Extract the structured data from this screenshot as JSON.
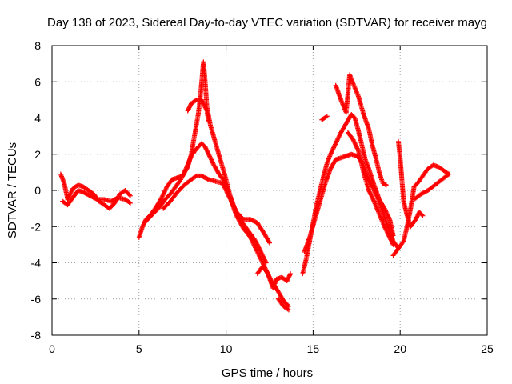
{
  "chart_data": {
    "type": "scatter",
    "title": "Day 138 of 2023, Sidereal Day-to-day VTEC variation (SDTVAR) for receiver mayg",
    "xlabel": "GPS time / hours",
    "ylabel": "SDTVAR / TECUs",
    "xlim": [
      0,
      25
    ],
    "ylim": [
      -8,
      8
    ],
    "xticks": [
      "0",
      "5",
      "10",
      "15",
      "20",
      "25"
    ],
    "yticks": [
      "-8",
      "-6",
      "-4",
      "-2",
      "0",
      "2",
      "4",
      "6",
      "8"
    ],
    "grid": true,
    "marker": "plus",
    "color": "#ff0000",
    "series": [
      {
        "points": [
          [
            0.5,
            0.9
          ],
          [
            0.7,
            0.4
          ],
          [
            0.9,
            -0.5
          ],
          [
            1.2,
            0.1
          ],
          [
            1.5,
            0.3
          ],
          [
            1.8,
            0.2
          ],
          [
            2.1,
            0.0
          ],
          [
            2.4,
            -0.2
          ],
          [
            2.7,
            -0.6
          ],
          [
            3.0,
            -0.8
          ],
          [
            3.3,
            -1.0
          ],
          [
            3.6,
            -0.7
          ],
          [
            3.9,
            -0.2
          ],
          [
            4.2,
            0.0
          ],
          [
            4.5,
            -0.3
          ]
        ]
      },
      {
        "points": [
          [
            0.6,
            -0.6
          ],
          [
            0.9,
            -0.8
          ],
          [
            1.2,
            -0.4
          ],
          [
            1.5,
            0.0
          ],
          [
            1.8,
            -0.1
          ],
          [
            2.2,
            -0.3
          ],
          [
            2.6,
            -0.5
          ],
          [
            3.0,
            -0.5
          ],
          [
            3.4,
            -0.6
          ],
          [
            3.8,
            -0.4
          ],
          [
            4.2,
            -0.5
          ],
          [
            4.5,
            -0.7
          ]
        ]
      },
      {
        "points": [
          [
            5.0,
            -2.6
          ],
          [
            5.2,
            -2.0
          ],
          [
            5.4,
            -1.6
          ],
          [
            5.7,
            -1.3
          ],
          [
            6.0,
            -0.9
          ],
          [
            6.3,
            -0.4
          ],
          [
            6.6,
            0.2
          ],
          [
            6.9,
            0.6
          ],
          [
            7.2,
            0.7
          ],
          [
            7.5,
            0.8
          ],
          [
            7.8,
            1.3
          ],
          [
            8.0,
            2.0
          ],
          [
            8.2,
            3.1
          ],
          [
            8.4,
            4.2
          ],
          [
            8.5,
            5.0
          ],
          [
            8.6,
            6.0
          ],
          [
            8.7,
            7.1
          ],
          [
            8.8,
            6.0
          ],
          [
            8.9,
            4.6
          ],
          [
            9.1,
            3.6
          ],
          [
            9.4,
            2.6
          ],
          [
            9.7,
            1.6
          ],
          [
            10.0,
            0.6
          ],
          [
            10.3,
            -0.6
          ],
          [
            10.6,
            -1.4
          ],
          [
            11.0,
            -2.1
          ],
          [
            11.4,
            -2.6
          ],
          [
            11.8,
            -3.4
          ],
          [
            12.2,
            -4.2
          ],
          [
            12.6,
            -5.0
          ],
          [
            13.0,
            -5.6
          ],
          [
            13.3,
            -6.1
          ],
          [
            13.6,
            -6.4
          ]
        ]
      },
      {
        "points": [
          [
            5.3,
            -1.8
          ],
          [
            5.6,
            -1.5
          ],
          [
            5.9,
            -1.2
          ],
          [
            6.2,
            -0.9
          ],
          [
            6.5,
            -0.5
          ],
          [
            6.8,
            -0.2
          ],
          [
            7.1,
            0.2
          ],
          [
            7.4,
            0.6
          ],
          [
            7.7,
            1.2
          ],
          [
            8.0,
            1.9
          ],
          [
            8.3,
            2.3
          ],
          [
            8.6,
            2.6
          ],
          [
            8.8,
            2.4
          ],
          [
            9.0,
            2.0
          ],
          [
            9.3,
            1.4
          ],
          [
            9.6,
            0.9
          ],
          [
            9.9,
            0.5
          ],
          [
            10.2,
            -0.2
          ],
          [
            10.5,
            -1.0
          ],
          [
            10.8,
            -1.6
          ],
          [
            11.1,
            -2.0
          ],
          [
            11.4,
            -2.4
          ],
          [
            11.7,
            -2.8
          ],
          [
            12.0,
            -3.4
          ],
          [
            12.3,
            -4.0
          ]
        ]
      },
      {
        "points": [
          [
            6.4,
            -1.0
          ],
          [
            6.8,
            -0.6
          ],
          [
            7.2,
            -0.1
          ],
          [
            7.6,
            0.3
          ],
          [
            8.0,
            0.6
          ],
          [
            8.3,
            0.8
          ],
          [
            8.6,
            0.8
          ],
          [
            9.0,
            0.6
          ],
          [
            9.4,
            0.5
          ],
          [
            9.8,
            0.4
          ],
          [
            10.2,
            -0.4
          ],
          [
            10.6,
            -1.2
          ],
          [
            11.0,
            -1.6
          ],
          [
            11.4,
            -1.6
          ],
          [
            11.8,
            -1.8
          ],
          [
            12.2,
            -2.4
          ],
          [
            12.5,
            -2.9
          ]
        ]
      },
      {
        "points": [
          [
            7.8,
            4.4
          ],
          [
            8.0,
            4.8
          ],
          [
            8.3,
            5.0
          ],
          [
            8.6,
            5.0
          ],
          [
            8.9,
            4.4
          ],
          [
            9.0,
            3.8
          ]
        ]
      },
      {
        "points": [
          [
            11.8,
            -4.6
          ],
          [
            12.1,
            -4.2
          ],
          [
            12.4,
            -4.6
          ],
          [
            12.7,
            -5.4
          ],
          [
            12.9,
            -4.9
          ],
          [
            13.2,
            -4.8
          ],
          [
            13.5,
            -5.0
          ],
          [
            13.7,
            -4.6
          ]
        ]
      },
      {
        "points": [
          [
            13.0,
            -6.0
          ],
          [
            13.3,
            -6.4
          ],
          [
            13.6,
            -6.6
          ]
        ]
      },
      {
        "points": [
          [
            14.4,
            -4.6
          ],
          [
            14.6,
            -3.8
          ],
          [
            14.8,
            -2.8
          ],
          [
            15.0,
            -1.8
          ],
          [
            15.2,
            -0.8
          ],
          [
            15.4,
            0.0
          ],
          [
            15.6,
            0.8
          ],
          [
            15.8,
            1.5
          ],
          [
            16.0,
            2.0
          ],
          [
            16.3,
            2.6
          ],
          [
            16.6,
            3.2
          ],
          [
            16.9,
            3.7
          ],
          [
            17.2,
            4.2
          ],
          [
            17.4,
            4.0
          ],
          [
            17.6,
            3.3
          ],
          [
            17.8,
            2.5
          ],
          [
            18.0,
            1.7
          ],
          [
            18.2,
            1.2
          ],
          [
            18.5,
            0.3
          ],
          [
            18.8,
            -0.5
          ],
          [
            19.1,
            -1.0
          ],
          [
            19.4,
            -1.6
          ],
          [
            19.6,
            -2.5
          ]
        ]
      },
      {
        "points": [
          [
            14.5,
            -3.4
          ],
          [
            14.8,
            -2.6
          ],
          [
            15.1,
            -1.6
          ],
          [
            15.4,
            -0.6
          ],
          [
            15.7,
            0.4
          ],
          [
            16.0,
            1.2
          ],
          [
            16.3,
            1.7
          ],
          [
            16.6,
            1.8
          ],
          [
            16.9,
            1.9
          ],
          [
            17.2,
            2.0
          ],
          [
            17.5,
            1.9
          ],
          [
            17.8,
            1.6
          ],
          [
            18.1,
            0.8
          ],
          [
            18.4,
            0.2
          ],
          [
            18.7,
            -0.4
          ],
          [
            19.0,
            -1.2
          ],
          [
            19.3,
            -2.0
          ],
          [
            19.6,
            -2.8
          ],
          [
            19.9,
            -3.2
          ]
        ]
      },
      {
        "points": [
          [
            15.5,
            3.9
          ],
          [
            15.8,
            4.1
          ]
        ]
      },
      {
        "points": [
          [
            16.3,
            5.8
          ],
          [
            16.6,
            5.0
          ],
          [
            16.9,
            4.3
          ],
          [
            17.1,
            6.4
          ],
          [
            17.3,
            5.9
          ],
          [
            17.6,
            5.2
          ],
          [
            17.9,
            4.2
          ],
          [
            18.2,
            3.4
          ],
          [
            18.4,
            2.5
          ],
          [
            18.6,
            1.8
          ],
          [
            18.8,
            1.0
          ],
          [
            19.0,
            0.4
          ],
          [
            19.2,
            0.3
          ]
        ]
      },
      {
        "points": [
          [
            17.0,
            3.2
          ],
          [
            17.3,
            2.8
          ],
          [
            17.6,
            2.2
          ],
          [
            17.9,
            1.0
          ],
          [
            18.2,
            0.0
          ],
          [
            18.5,
            -0.6
          ],
          [
            18.8,
            -1.3
          ],
          [
            19.1,
            -2.0
          ],
          [
            19.4,
            -2.6
          ],
          [
            19.6,
            -3.0
          ]
        ]
      },
      {
        "points": [
          [
            19.9,
            2.7
          ],
          [
            20.0,
            1.8
          ],
          [
            20.1,
            0.6
          ],
          [
            20.2,
            -0.6
          ],
          [
            20.4,
            -1.4
          ],
          [
            20.6,
            -2.0
          ],
          [
            20.9,
            -1.6
          ],
          [
            21.1,
            -1.2
          ],
          [
            21.3,
            -1.4
          ]
        ]
      },
      {
        "points": [
          [
            19.6,
            -3.6
          ],
          [
            19.9,
            -3.2
          ],
          [
            20.2,
            -2.8
          ],
          [
            20.4,
            -2.0
          ],
          [
            20.6,
            -1.0
          ],
          [
            20.8,
            0.2
          ],
          [
            21.0,
            0.4
          ],
          [
            21.3,
            0.8
          ],
          [
            21.6,
            1.2
          ],
          [
            21.9,
            1.4
          ],
          [
            22.2,
            1.3
          ],
          [
            22.5,
            1.1
          ],
          [
            22.8,
            0.9
          ]
        ]
      },
      {
        "points": [
          [
            20.8,
            -0.5
          ],
          [
            21.2,
            -0.2
          ],
          [
            21.6,
            0.0
          ],
          [
            22.0,
            0.3
          ],
          [
            22.4,
            0.6
          ],
          [
            22.8,
            0.9
          ]
        ]
      }
    ]
  }
}
